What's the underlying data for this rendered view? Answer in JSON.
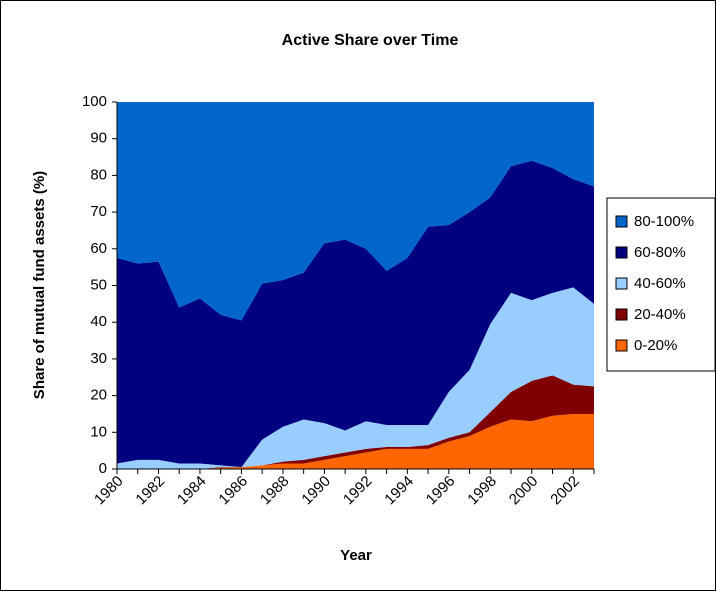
{
  "chart_data": {
    "type": "stacked-area",
    "title": "Active Share over Time",
    "x_label": "Year",
    "y_label": "Share of mutual fund assets (%)",
    "categories": [
      "1980",
      null,
      "1982",
      null,
      "1984",
      null,
      "1986",
      null,
      "1988",
      null,
      "1990",
      null,
      "1992",
      null,
      "1994",
      null,
      "1996",
      null,
      "1998",
      null,
      "2000",
      null,
      "2002",
      null
    ],
    "series": [
      {
        "name": "0-20%",
        "color": "#ff6600",
        "values": [
          0,
          0,
          0,
          0,
          0,
          0.3,
          0.5,
          1,
          1.5,
          1.5,
          2.5,
          3.5,
          4.5,
          5.5,
          5.5,
          5.5,
          7.5,
          9,
          11.5,
          13.5,
          13,
          14.5,
          15,
          15
        ]
      },
      {
        "name": "20-40%",
        "color": "#800000",
        "values": [
          0,
          0,
          0,
          0,
          0,
          0.2,
          0,
          0,
          0.5,
          1,
          1,
          1,
          1,
          0.5,
          0.5,
          1,
          1,
          1,
          4,
          7.5,
          11,
          11,
          8,
          7.5
        ]
      },
      {
        "name": "40-60%",
        "color": "#99ccff",
        "values": [
          1.5,
          2.5,
          2.5,
          1.5,
          1.5,
          0.5,
          0,
          7,
          9.5,
          11,
          9,
          6,
          7.5,
          6,
          6,
          5.5,
          12.5,
          17,
          24,
          27,
          22,
          22.5,
          26.5,
          22.5
        ]
      },
      {
        "name": "60-80%",
        "color": "#000080",
        "values": [
          56,
          53.5,
          54,
          42.5,
          45,
          41,
          40,
          42.5,
          40,
          40,
          49,
          52,
          47,
          42,
          45.5,
          54,
          45.5,
          43,
          34.5,
          34.5,
          38,
          34,
          29.5,
          32
        ]
      },
      {
        "name": "80-100%",
        "color": "#0066cc",
        "values": [
          42.5,
          44,
          43.5,
          56,
          53.5,
          58,
          59.5,
          49.5,
          48.5,
          46.5,
          38.5,
          37.5,
          40,
          46,
          42.5,
          34,
          33.5,
          30,
          26,
          17.5,
          16,
          18,
          21,
          23
        ]
      }
    ],
    "ylim": [
      0,
      100
    ],
    "yticks": [
      0,
      10,
      20,
      30,
      40,
      50,
      60,
      70,
      80,
      90,
      100
    ],
    "legend": "right"
  }
}
